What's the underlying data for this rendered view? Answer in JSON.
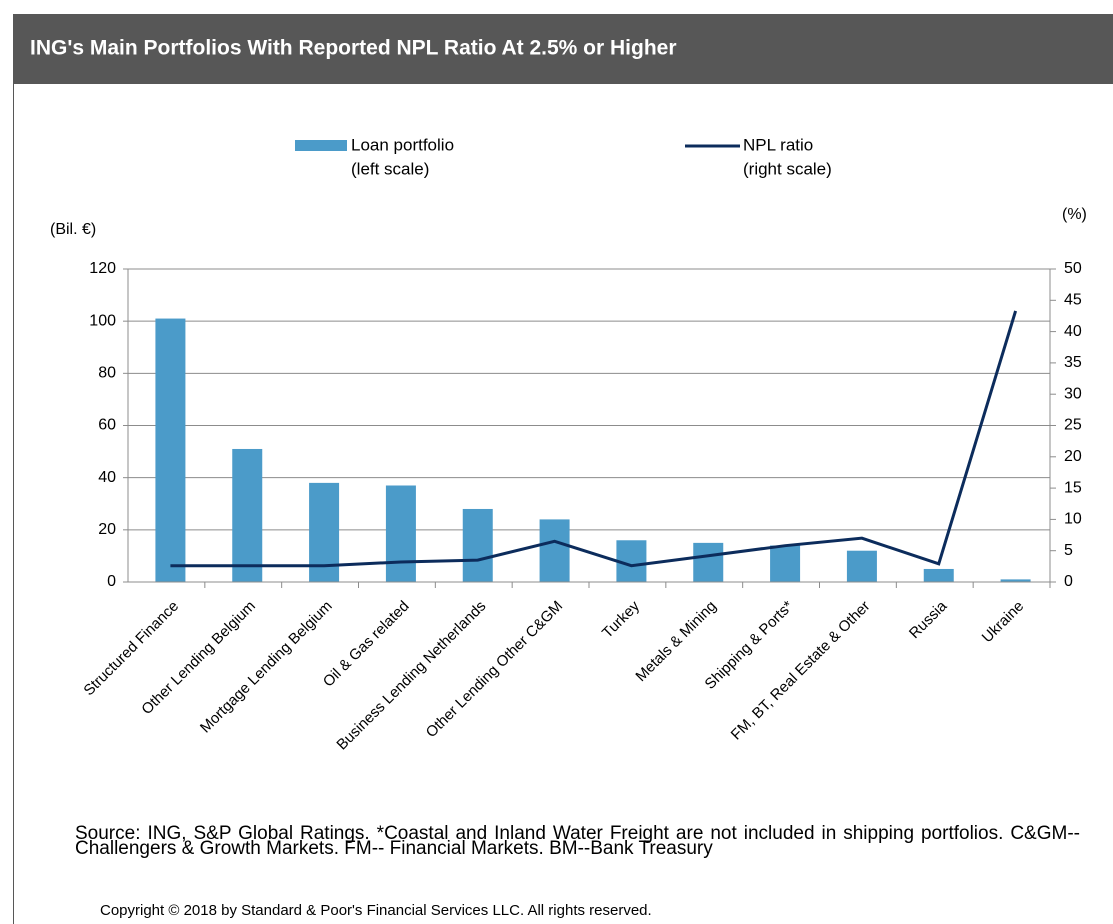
{
  "chart_data": {
    "type": "bar_line",
    "title": "ING's Main Portfolios With Reported NPL Ratio At 2.5% or Higher",
    "y_axis_label": "(Bil. €)",
    "y2_axis_label": "(%)",
    "categories": [
      "Structured Finance",
      "Other Lending Belgium",
      "Mortgage Lending Belgium",
      "Oil & Gas related",
      "Business Lending Netherlands",
      "Other Lending Other C&GM",
      "Turkey",
      "Metals & Mining",
      "Shipping & Ports*",
      "FM, BT, Real Estate & Other",
      "Russia",
      "Ukraine"
    ],
    "series": [
      {
        "name": "Loan portfolio",
        "scale_label": "(left scale)",
        "kind": "bar",
        "color": "#4b9bc9",
        "values": [
          101,
          51,
          38,
          37,
          28,
          24,
          16,
          15,
          14,
          12,
          5,
          1
        ]
      },
      {
        "name": "NPL ratio",
        "scale_label": "(right scale)",
        "kind": "line",
        "axis": "y2",
        "color": "#0c2c5c",
        "values": [
          2.6,
          2.6,
          2.6,
          3.2,
          3.5,
          6.5,
          2.6,
          4.2,
          5.8,
          7.0,
          2.9,
          43.3
        ]
      }
    ],
    "ylim": [
      0,
      120
    ],
    "yticks": [
      0,
      20,
      40,
      60,
      80,
      100,
      120
    ],
    "y2lim": [
      0,
      50
    ],
    "y2ticks": [
      0,
      5,
      10,
      15,
      20,
      25,
      30,
      35,
      40,
      45,
      50
    ],
    "grid": true,
    "source": "Source: ING, S&P Global Ratings. *Coastal and Inland Water Freight are not included in shipping portfolios. C&GM--Challengers & Growth Markets. FM-- Financial Markets. BM--Bank Treasury",
    "copyright": "Copyright © 2018 by Standard & Poor's Financial Services LLC. All rights reserved."
  }
}
